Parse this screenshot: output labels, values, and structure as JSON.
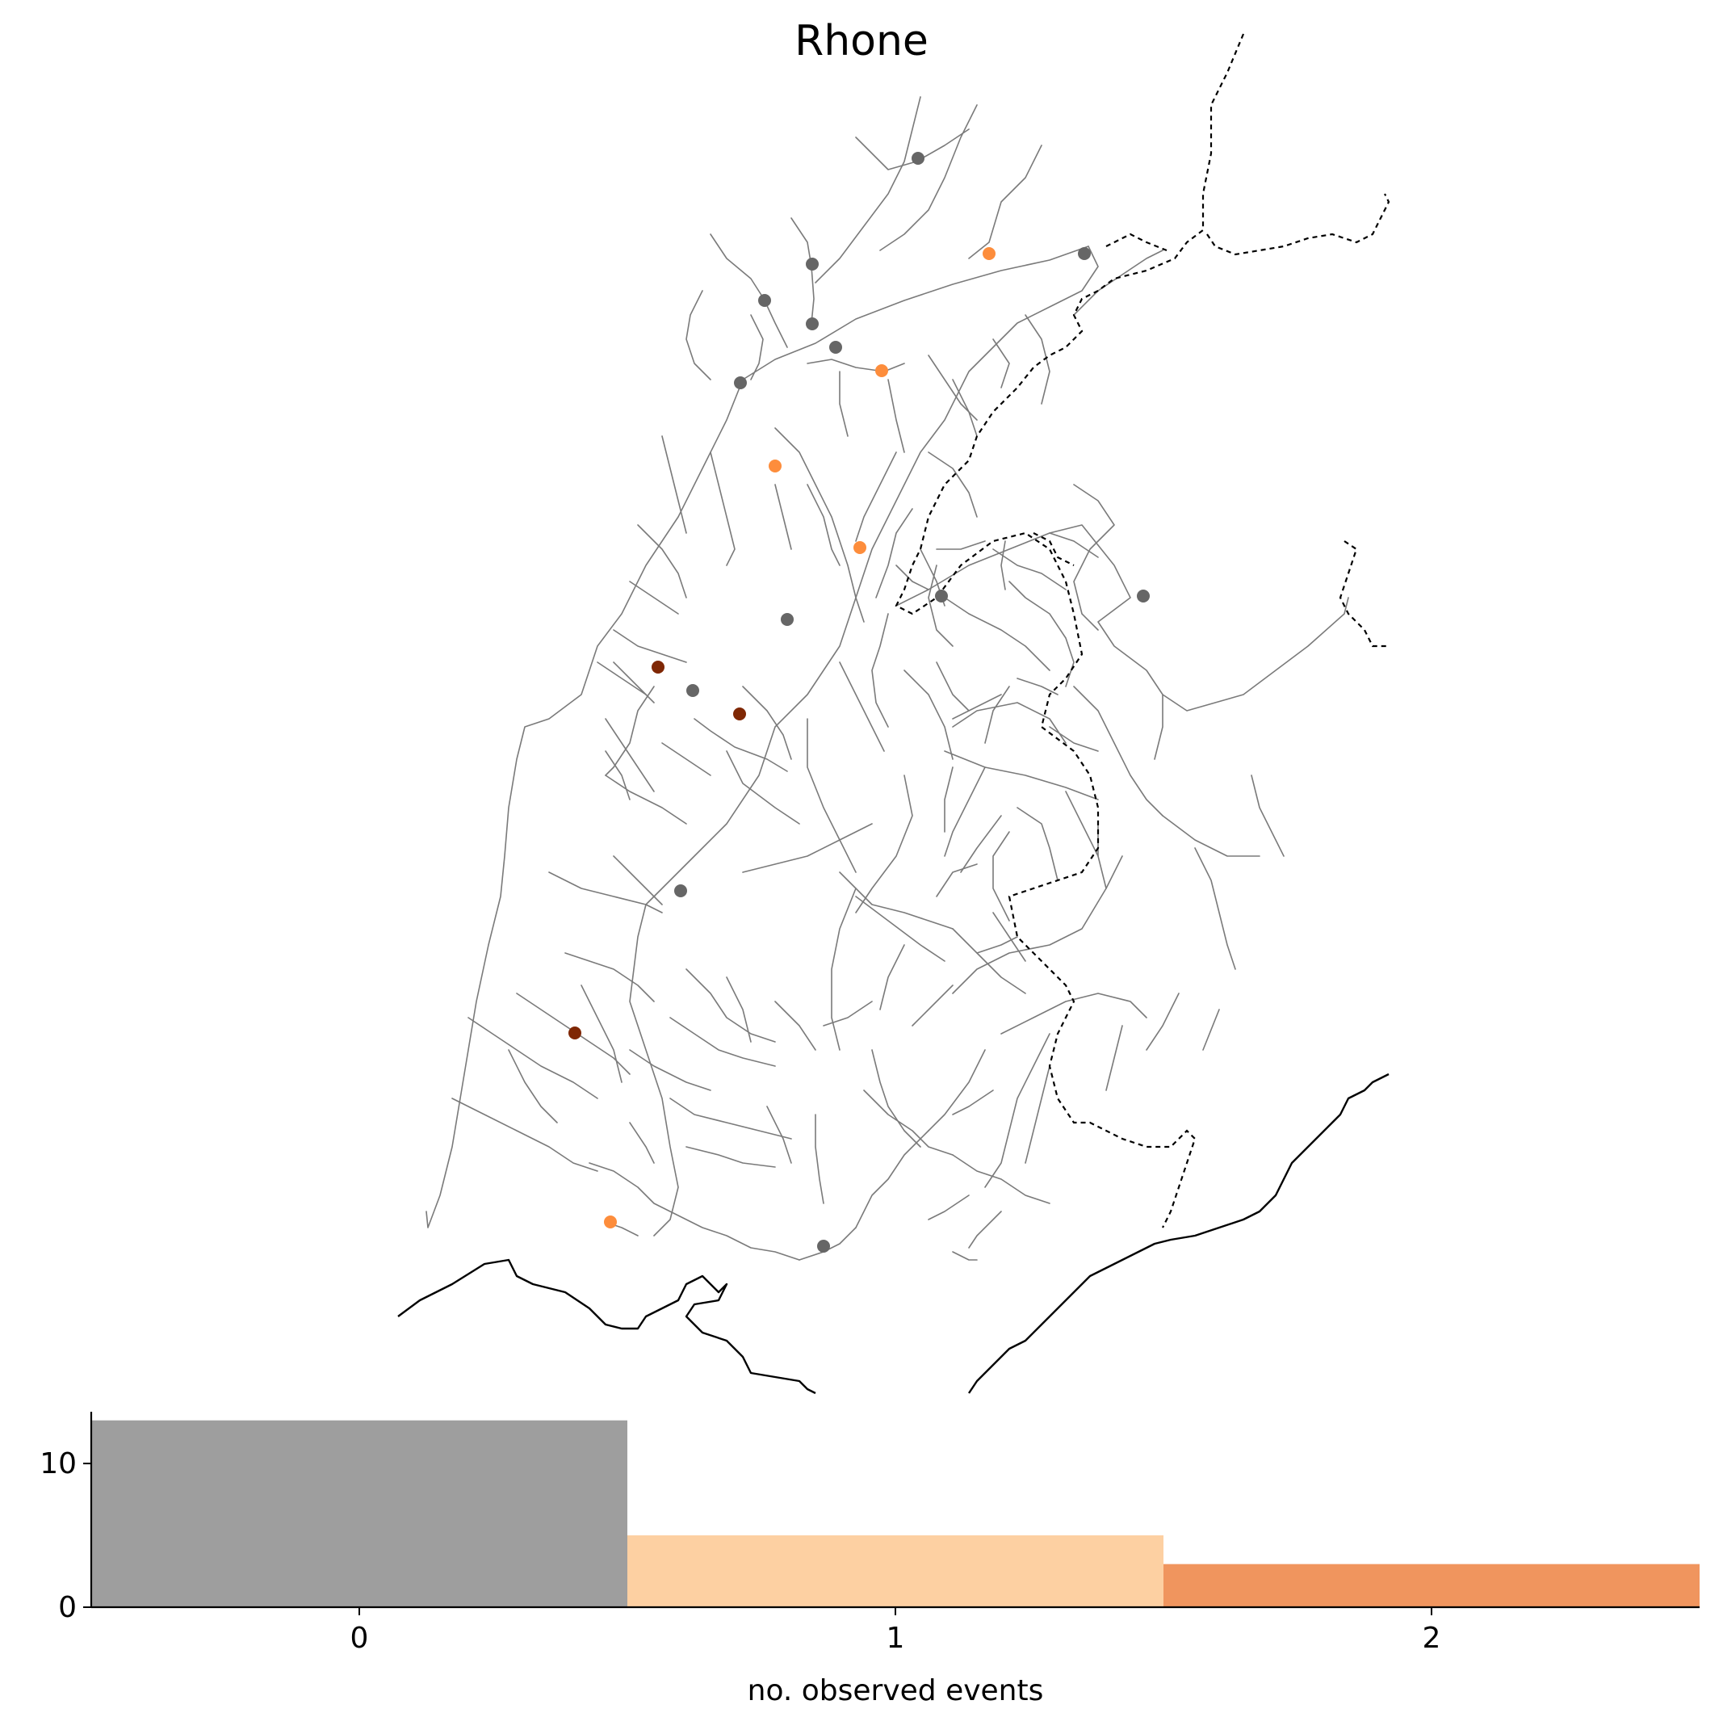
{
  "title": "Rhone",
  "colors": {
    "no_event_station": "#666666",
    "one_event_station": "#fd8d3c",
    "two_event_station": "#7f2704",
    "river": "#7a7a7a",
    "border": "#000000",
    "bar_0": "#9e9e9e",
    "bar_1": "#fdd0a2",
    "bar_2": "#f0955e"
  },
  "map": {
    "stations": [
      {
        "events": 0
      },
      {
        "events": 1
      },
      {
        "events": 0
      },
      {
        "events": 0
      },
      {
        "events": 0
      },
      {
        "events": 0
      },
      {
        "events": 0
      },
      {
        "events": 1
      },
      {
        "events": 0
      },
      {
        "events": 1
      },
      {
        "events": 1
      },
      {
        "events": 0
      },
      {
        "events": 0
      },
      {
        "events": 0
      },
      {
        "events": 2
      },
      {
        "events": 0
      },
      {
        "events": 2
      },
      {
        "events": 0
      },
      {
        "events": 2
      },
      {
        "events": 1
      },
      {
        "events": 0
      }
    ]
  },
  "chart_data": {
    "type": "bar",
    "categories": [
      "0",
      "1",
      "2"
    ],
    "values": [
      13,
      5,
      3
    ],
    "xlabel": "no. observed events",
    "ylabel": "",
    "yticks": [
      "0",
      "10"
    ],
    "ylim": [
      0,
      13.6
    ]
  }
}
